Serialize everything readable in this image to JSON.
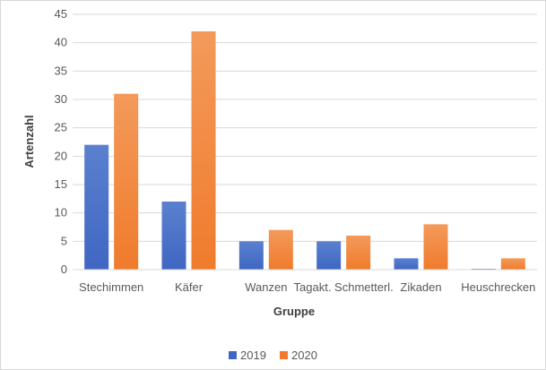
{
  "chart_data": {
    "type": "bar",
    "title": "",
    "xlabel": "Gruppe",
    "ylabel": "Artenzahl",
    "categories": [
      "Stechimmen",
      "Käfer",
      "Wanzen",
      "Tagakt. Schmetterl.",
      "Zikaden",
      "Heuschrecken"
    ],
    "series": [
      {
        "name": "2019",
        "values": [
          22,
          12,
          5,
          5,
          2,
          0
        ]
      },
      {
        "name": "2020",
        "values": [
          31,
          42,
          7,
          6,
          8,
          2
        ]
      }
    ],
    "ylim": [
      0,
      45
    ],
    "yticks": [
      "0",
      "5",
      "10",
      "15",
      "20",
      "25",
      "30",
      "35",
      "40",
      "45"
    ],
    "grid": true,
    "legend": "bottom",
    "colors": {
      "series_2019_top": "#5b80cf",
      "series_2019_bottom": "#3f67c2",
      "series_2020_top": "#f39a5b",
      "series_2020_bottom": "#f07b2c",
      "grid": "#d9d9d9",
      "axis": "#d9d9d9"
    }
  }
}
